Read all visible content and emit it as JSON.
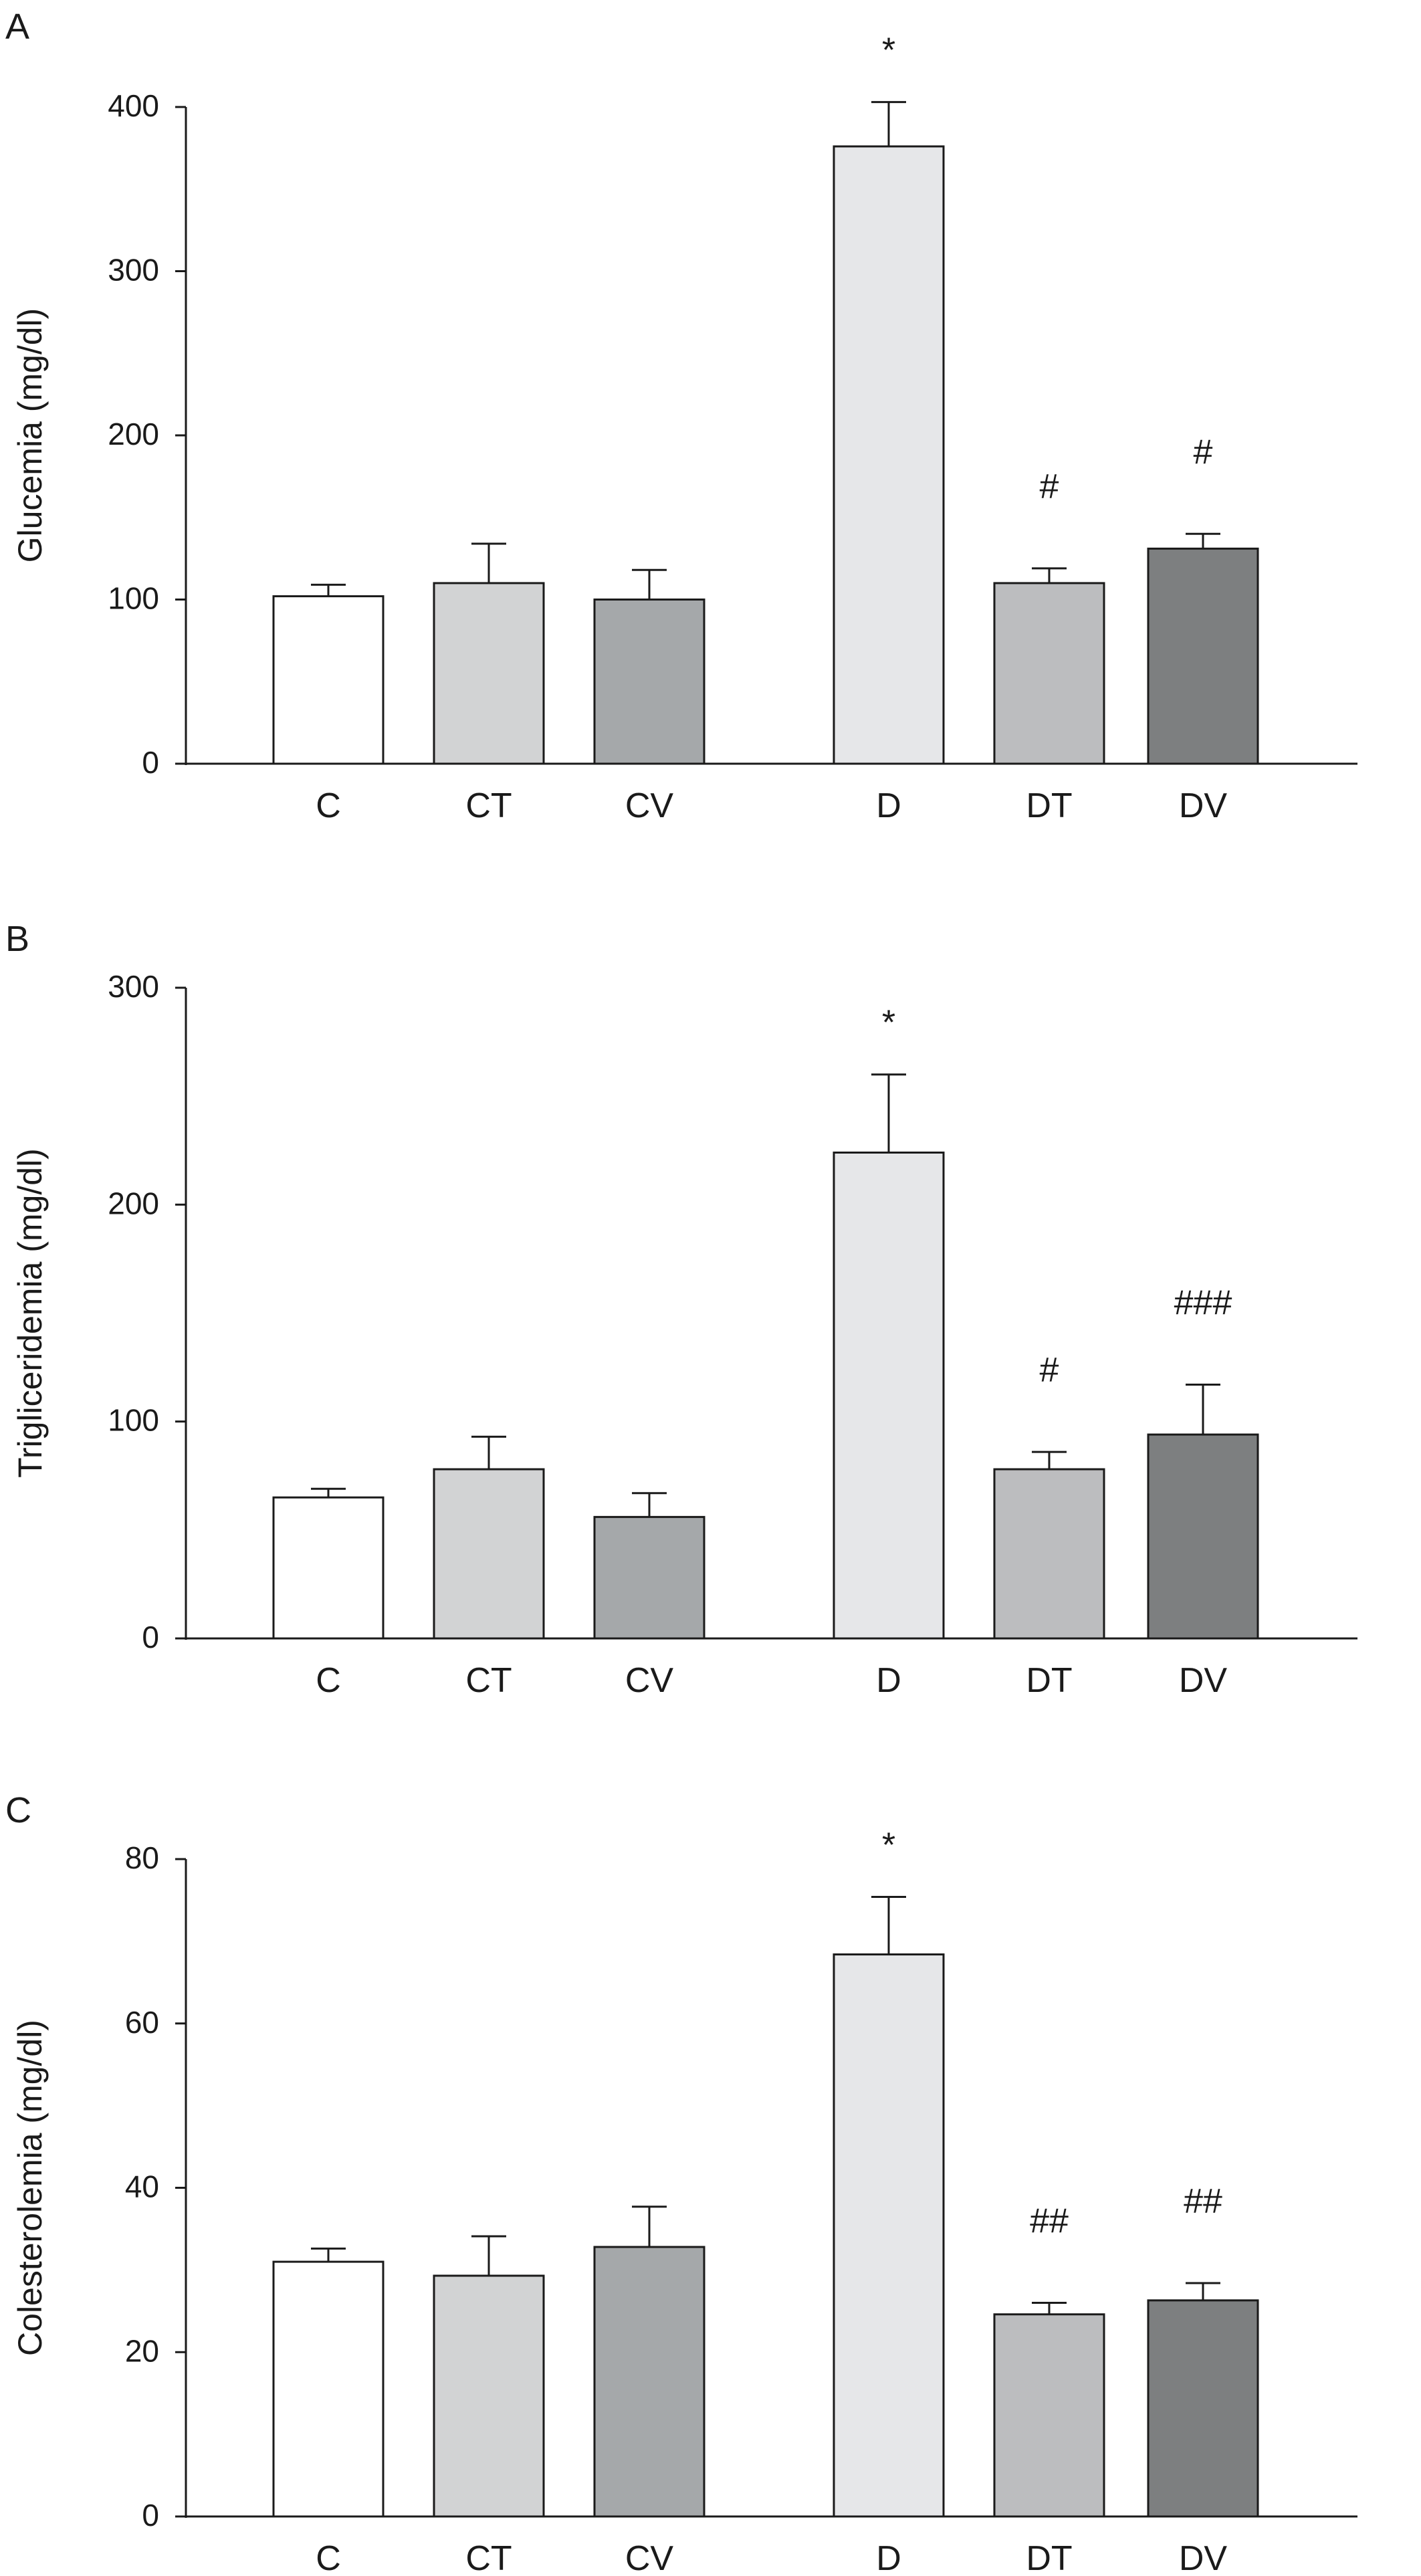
{
  "chart_data": [
    {
      "type": "bar",
      "panel": "A",
      "ylabel": "Glucemia (mg/dl)",
      "ylim": [
        0,
        400
      ],
      "yticks": [
        0,
        100,
        200,
        300,
        400
      ],
      "categories": [
        "C",
        "CT",
        "CV",
        "D",
        "DT",
        "DV"
      ],
      "values": [
        102,
        110,
        100,
        376,
        110,
        131
      ],
      "errors": [
        7,
        24,
        18,
        27,
        9,
        9
      ],
      "annotations": [
        "",
        "",
        "",
        "*",
        "#",
        "#"
      ],
      "colors": [
        "#ffffff",
        "#d2d3d4",
        "#a5a8aa",
        "#e6e7e9",
        "#bcbdbf",
        "#7d7f80"
      ],
      "grid": false,
      "legend": "none"
    },
    {
      "type": "bar",
      "panel": "B",
      "ylabel": "Trigliceridemia (mg/dl)",
      "ylim": [
        0,
        300
      ],
      "yticks": [
        0,
        100,
        200,
        300
      ],
      "categories": [
        "C",
        "CT",
        "CV",
        "D",
        "DT",
        "DV"
      ],
      "values": [
        65,
        78,
        56,
        224,
        78,
        94
      ],
      "errors": [
        4,
        15,
        11,
        36,
        8,
        23
      ],
      "annotations": [
        "",
        "",
        "",
        "*",
        "#",
        "###"
      ],
      "colors": [
        "#ffffff",
        "#d2d3d4",
        "#a5a8aa",
        "#e6e7e9",
        "#bcbdbf",
        "#7d7f80"
      ],
      "grid": false,
      "legend": "none"
    },
    {
      "type": "bar",
      "panel": "C",
      "ylabel": "Colesterolemia (mg/dl)",
      "ylim": [
        0,
        80
      ],
      "yticks": [
        0,
        20,
        40,
        60,
        80
      ],
      "categories": [
        "C",
        "CT",
        "CV",
        "D",
        "DT",
        "DV"
      ],
      "values": [
        31,
        29.3,
        32.8,
        68.4,
        24.6,
        26.3
      ],
      "errors": [
        1.6,
        4.8,
        4.9,
        7,
        1.4,
        2.1
      ],
      "annotations": [
        "",
        "",
        "",
        "*",
        "##",
        "##"
      ],
      "colors": [
        "#ffffff",
        "#d2d3d4",
        "#a5a8aa",
        "#e6e7e9",
        "#bcbdbf",
        "#7d7f80"
      ],
      "grid": false,
      "legend": "none"
    }
  ]
}
